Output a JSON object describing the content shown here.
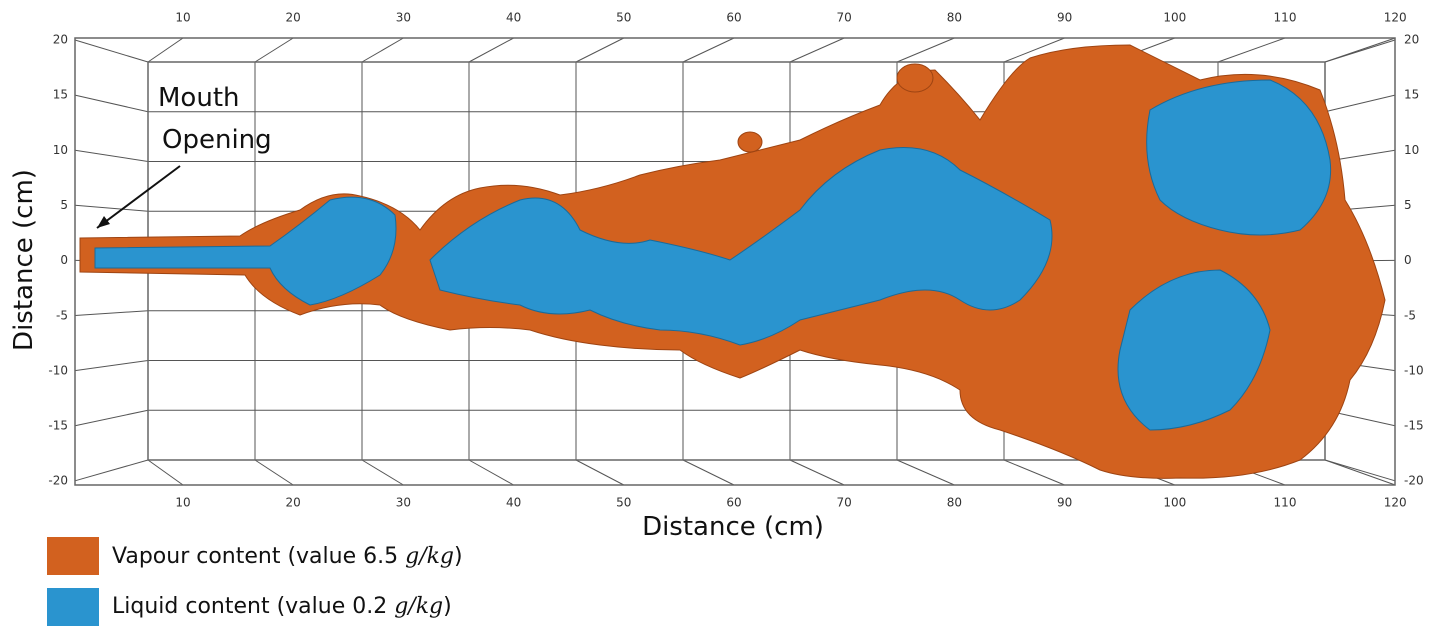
{
  "axes": {
    "top_ticks": [
      10,
      20,
      30,
      40,
      50,
      60,
      70,
      80,
      90,
      100,
      110,
      120
    ],
    "bottom_ticks": [
      10,
      20,
      30,
      40,
      50,
      60,
      70,
      80,
      90,
      100,
      110,
      120
    ],
    "left_ticks": [
      20,
      15,
      10,
      5,
      0,
      -5,
      -10,
      -15,
      -20
    ],
    "right_ticks": [
      20,
      15,
      10,
      5,
      0,
      -5,
      -10,
      -15,
      -20
    ],
    "x_label": "Distance (cm)",
    "y_label": "Distance (cm)"
  },
  "annotation": {
    "line1": "Mouth",
    "line2": "Opening"
  },
  "legend": [
    {
      "prefix": "Vapour content (value 6.5 ",
      "unit": "g/kg",
      "suffix": ")"
    },
    {
      "prefix": "Liquid content (value 0.2 ",
      "unit": "g/kg",
      "suffix": ")"
    }
  ]
}
